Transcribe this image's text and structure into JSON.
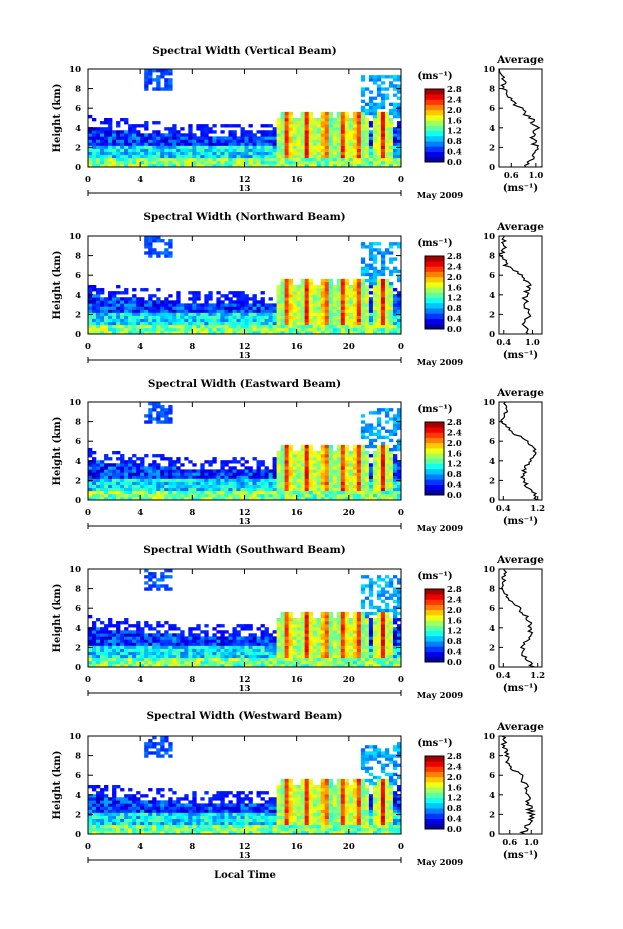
{
  "figure": {
    "x_label": "Local Time",
    "date_label": "May 2009",
    "colorbar_unit": "(ms⁻¹)",
    "avg_title": "Average",
    "avg_xlabel": "(ms⁻¹)"
  },
  "chart_data": [
    {
      "type": "heatmap",
      "title": "Spectral Width (Vertical Beam)",
      "ylabel": "Height (km)",
      "xlabel": "Local Time",
      "x_ticks": [
        "0",
        "4",
        "8",
        "12",
        "16",
        "20",
        "0"
      ],
      "date_tick": "13",
      "y_ticks": [
        0,
        2,
        4,
        6,
        8,
        10
      ],
      "ylim": [
        0,
        10
      ],
      "xlim": [
        0,
        24
      ],
      "colorbar": {
        "ticks": [
          "0.0",
          "0.4",
          "0.8",
          "1.2",
          "1.6",
          "2.0",
          "2.4",
          "2.8"
        ],
        "range": [
          0,
          2.8
        ]
      },
      "average_profile": {
        "xticks": [
          "0.6",
          "1.0"
        ],
        "xlim": [
          0.4,
          1.1
        ],
        "height_km": [
          0,
          1,
          2,
          3,
          4,
          5,
          6,
          7,
          8,
          9,
          10
        ],
        "values": [
          0.85,
          0.95,
          1.0,
          0.95,
          1.0,
          0.9,
          0.75,
          0.55,
          0.5,
          0.45,
          0.45
        ]
      }
    },
    {
      "type": "heatmap",
      "title": "Spectral Width (Northward Beam)",
      "ylabel": "Height (km)",
      "xlabel": "Local Time",
      "x_ticks": [
        "0",
        "4",
        "8",
        "12",
        "16",
        "20",
        "0"
      ],
      "date_tick": "13",
      "y_ticks": [
        0,
        2,
        4,
        6,
        8,
        10
      ],
      "ylim": [
        0,
        10
      ],
      "xlim": [
        0,
        24
      ],
      "colorbar": {
        "ticks": [
          "0.0",
          "0.4",
          "0.8",
          "1.2",
          "1.6",
          "2.0",
          "2.4",
          "2.8"
        ],
        "range": [
          0,
          2.8
        ]
      },
      "average_profile": {
        "xticks": [
          "0.4",
          "1.0"
        ],
        "xlim": [
          0.3,
          1.2
        ],
        "height_km": [
          0,
          1,
          2,
          3,
          4,
          5,
          6,
          7,
          8,
          9,
          10
        ],
        "values": [
          0.9,
          0.8,
          0.95,
          0.85,
          0.85,
          0.95,
          0.8,
          0.45,
          0.35,
          0.4,
          0.4
        ]
      }
    },
    {
      "type": "heatmap",
      "title": "Spectral Width (Eastward Beam)",
      "ylabel": "Height (km)",
      "xlabel": "Local Time",
      "x_ticks": [
        "0",
        "4",
        "8",
        "12",
        "16",
        "20",
        "0"
      ],
      "date_tick": "13",
      "y_ticks": [
        0,
        2,
        4,
        6,
        8,
        10
      ],
      "ylim": [
        0,
        10
      ],
      "xlim": [
        0,
        24
      ],
      "colorbar": {
        "ticks": [
          "0.0",
          "0.4",
          "0.8",
          "1.2",
          "1.6",
          "2.0",
          "2.4",
          "2.8"
        ],
        "range": [
          0,
          2.8
        ]
      },
      "average_profile": {
        "xticks": [
          "0.4",
          "1.2"
        ],
        "xlim": [
          0.3,
          1.3
        ],
        "height_km": [
          0,
          1,
          2,
          3,
          4,
          5,
          6,
          7,
          8,
          9,
          10
        ],
        "values": [
          1.2,
          1.05,
          0.85,
          0.9,
          1.0,
          1.15,
          1.0,
          0.55,
          0.4,
          0.45,
          0.45
        ]
      }
    },
    {
      "type": "heatmap",
      "title": "Spectral Width (Southward Beam)",
      "ylabel": "Height (km)",
      "xlabel": "Local Time",
      "x_ticks": [
        "0",
        "4",
        "8",
        "12",
        "16",
        "20",
        "0"
      ],
      "date_tick": "13",
      "y_ticks": [
        0,
        2,
        4,
        6,
        8,
        10
      ],
      "ylim": [
        0,
        10
      ],
      "xlim": [
        0,
        24
      ],
      "colorbar": {
        "ticks": [
          "0.0",
          "0.4",
          "0.8",
          "1.2",
          "1.6",
          "2.0",
          "2.4",
          "2.8"
        ],
        "range": [
          0,
          2.8
        ]
      },
      "average_profile": {
        "xticks": [
          "0.4",
          "1.2"
        ],
        "xlim": [
          0.3,
          1.3
        ],
        "height_km": [
          0,
          1,
          2,
          3,
          4,
          5,
          6,
          7,
          8,
          9,
          10
        ],
        "values": [
          1.1,
          0.9,
          0.85,
          1.0,
          1.05,
          0.95,
          0.75,
          0.5,
          0.4,
          0.42,
          0.45
        ]
      }
    },
    {
      "type": "heatmap",
      "title": "Spectral Width (Westward Beam)",
      "ylabel": "Height (km)",
      "xlabel": "Local Time",
      "x_ticks": [
        "0",
        "4",
        "8",
        "12",
        "16",
        "20",
        "0"
      ],
      "date_tick": "13",
      "y_ticks": [
        0,
        2,
        4,
        6,
        8,
        10
      ],
      "ylim": [
        0,
        10
      ],
      "xlim": [
        0,
        24
      ],
      "colorbar": {
        "ticks": [
          "0.0",
          "0.4",
          "0.8",
          "1.2",
          "1.6",
          "2.0",
          "2.4",
          "2.8"
        ],
        "range": [
          0,
          2.8
        ]
      },
      "average_profile": {
        "xticks": [
          "0.6",
          "1.0"
        ],
        "xlim": [
          0.4,
          1.2
        ],
        "height_km": [
          0,
          1,
          2,
          3,
          4,
          5,
          6,
          7,
          8,
          9,
          10
        ],
        "values": [
          0.85,
          0.95,
          1.0,
          0.95,
          0.95,
          0.9,
          0.8,
          0.6,
          0.55,
          0.5,
          0.5
        ]
      }
    }
  ]
}
